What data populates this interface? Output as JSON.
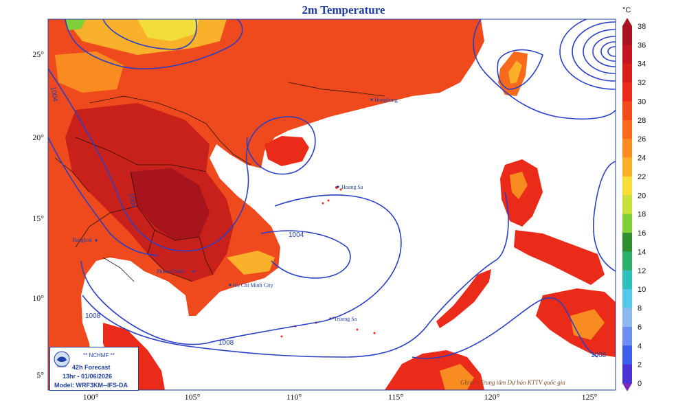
{
  "title": "2m Temperature",
  "unit": "°C",
  "x_ticks": [
    "100°",
    "105°",
    "110°",
    "115°",
    "120°",
    "125°"
  ],
  "y_ticks": [
    "25°",
    "20°",
    "15°",
    "10°",
    "5°"
  ],
  "colorbar": {
    "values": [
      "38",
      "36",
      "34",
      "32",
      "30",
      "28",
      "26",
      "24",
      "22",
      "20",
      "18",
      "16",
      "14",
      "12",
      "10",
      "8",
      "6",
      "4",
      "2",
      "0"
    ],
    "colors": [
      "#a81420",
      "#c41620",
      "#d81f1a",
      "#ea2b1a",
      "#f24a1c",
      "#f76a1c",
      "#f98c20",
      "#fbb02a",
      "#f8dd38",
      "#c9e03a",
      "#7fcf3a",
      "#2f8f2e",
      "#2eb06a",
      "#2ec0b8",
      "#56c8e8",
      "#8eb8f0",
      "#6b8ef0",
      "#3e5ee8",
      "#4a33d2",
      "#7a2ab8"
    ]
  },
  "places": [
    "Hongkong",
    "Hoang Sa",
    "Truong Sa",
    "Ho Chi Minh City",
    "Bangkok",
    "Phnom Penh"
  ],
  "isobar_labels": [
    "1004",
    "1004",
    "1004",
    "1008",
    "1008",
    "1008",
    "1000"
  ],
  "infobox": {
    "org": "** NCHMF **",
    "forecast": "42h Forecast",
    "time": "13hr - 01/06/2026",
    "model": "Model: WRF3KM--IFS-DA",
    "logo_text": "NCHMF"
  },
  "credit": "Ghim – Trung tâm Dự báo KTTV quốc gia"
}
